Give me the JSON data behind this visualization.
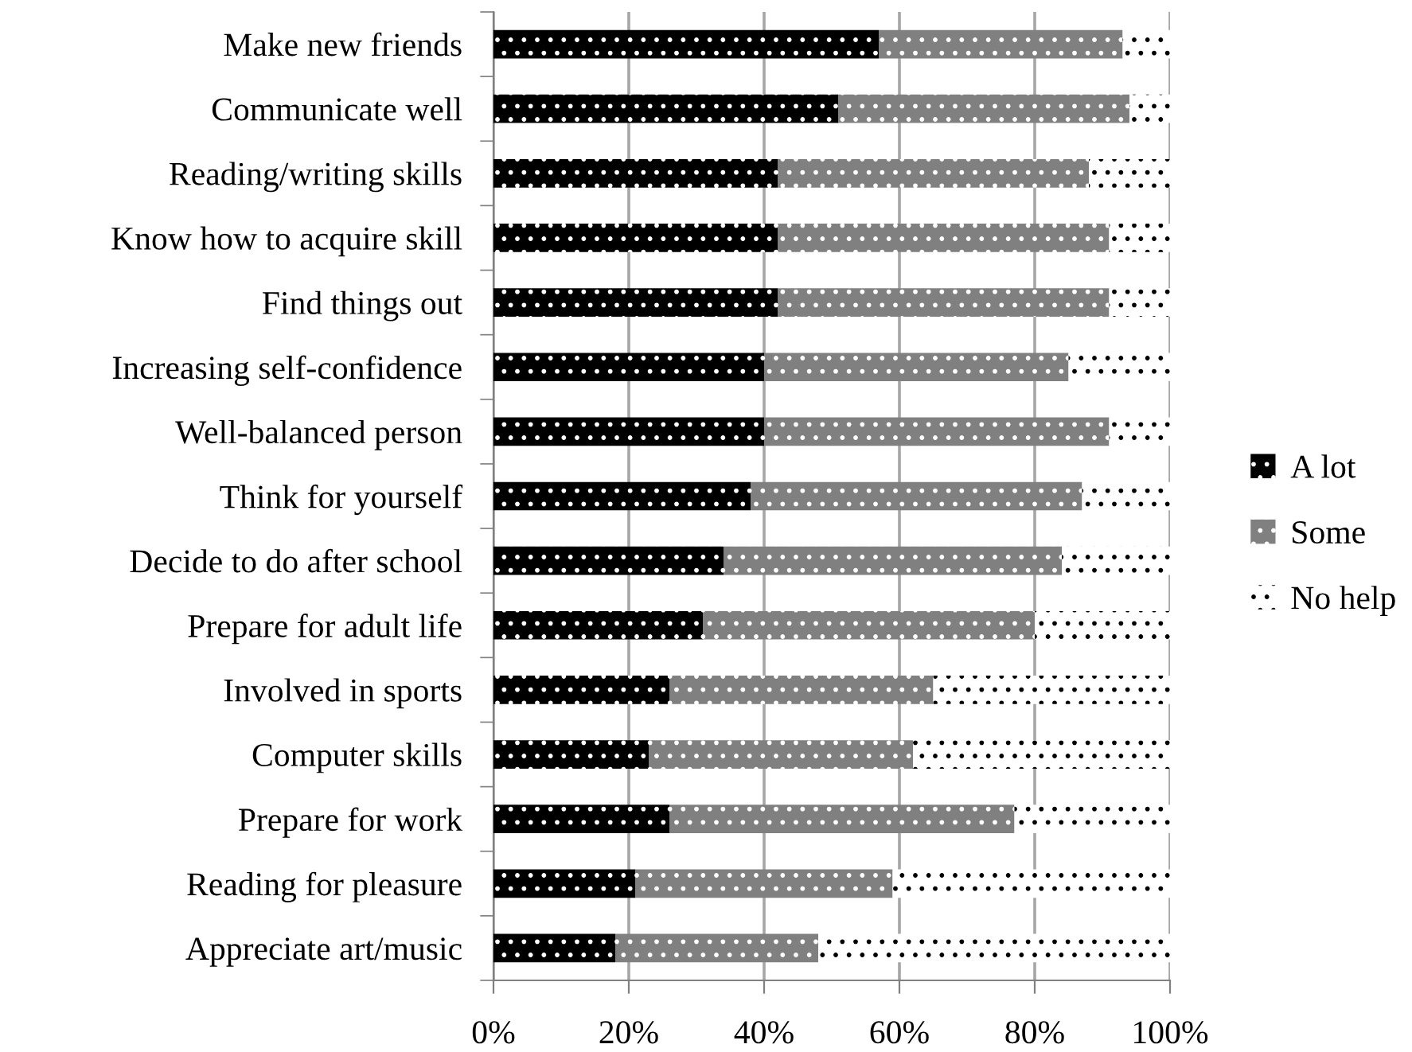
{
  "chart_data": {
    "type": "bar",
    "orientation": "horizontal",
    "stacked": true,
    "categories": [
      "Make new friends",
      "Communicate well",
      "Reading/writing skills",
      "Know how to acquire skill",
      "Find things out",
      "Increasing self-confidence",
      "Well-balanced person",
      "Think for yourself",
      "Decide to do after school",
      "Prepare for adult life",
      "Involved in sports",
      "Computer skills",
      "Prepare for work",
      "Reading for pleasure",
      "Appreciate art/music"
    ],
    "series": [
      {
        "name": "A lot",
        "color": "#000000",
        "values": [
          57,
          51,
          42,
          42,
          42,
          40,
          40,
          38,
          34,
          31,
          26,
          23,
          26,
          21,
          18
        ]
      },
      {
        "name": "Some",
        "color": "#808080",
        "values": [
          36,
          43,
          46,
          49,
          49,
          45,
          51,
          49,
          50,
          49,
          39,
          39,
          51,
          38,
          30
        ]
      },
      {
        "name": "No help",
        "color": "#ffffff",
        "values": [
          7,
          6,
          12,
          9,
          9,
          15,
          9,
          13,
          16,
          20,
          35,
          38,
          23,
          41,
          52
        ]
      }
    ],
    "xlim": [
      0,
      100
    ],
    "xticks": [
      {
        "value": 0,
        "label": "0%"
      },
      {
        "value": 20,
        "label": "20%"
      },
      {
        "value": 40,
        "label": "40%"
      },
      {
        "value": 60,
        "label": "60%"
      },
      {
        "value": 80,
        "label": "80%"
      },
      {
        "value": 100,
        "label": "100%"
      }
    ],
    "grid": "x",
    "legend": "right"
  }
}
